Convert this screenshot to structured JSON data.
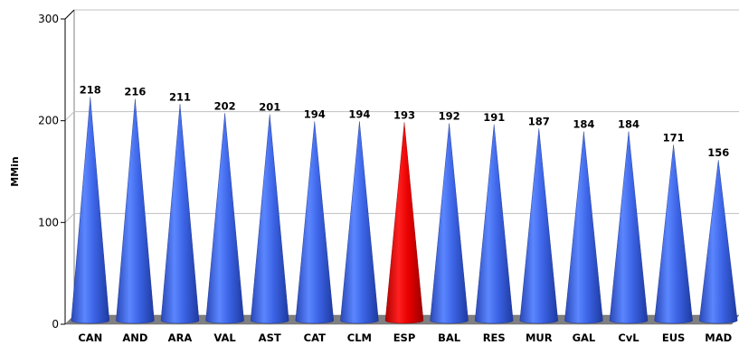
{
  "chart_data": {
    "type": "bar",
    "bar_shape": "cone",
    "categories": [
      "CAN",
      "AND",
      "ARA",
      "VAL",
      "AST",
      "CAT",
      "CLM",
      "ESP",
      "BAL",
      "RES",
      "MUR",
      "GAL",
      "CvL",
      "EUS",
      "MAD"
    ],
    "values": [
      218,
      216,
      211,
      202,
      201,
      194,
      194,
      193,
      192,
      191,
      187,
      184,
      184,
      171,
      156
    ],
    "highlight_category": "ESP",
    "colors": {
      "default": "#3c64e6",
      "highlight": "#e80000",
      "floor": "#808080",
      "grid": "#c0c0c0"
    },
    "ylabel": "MMin",
    "xlabel": "",
    "ylim": [
      0,
      300
    ],
    "yticks": [
      0,
      100,
      200,
      300
    ],
    "grid": true,
    "data_labels": true
  }
}
